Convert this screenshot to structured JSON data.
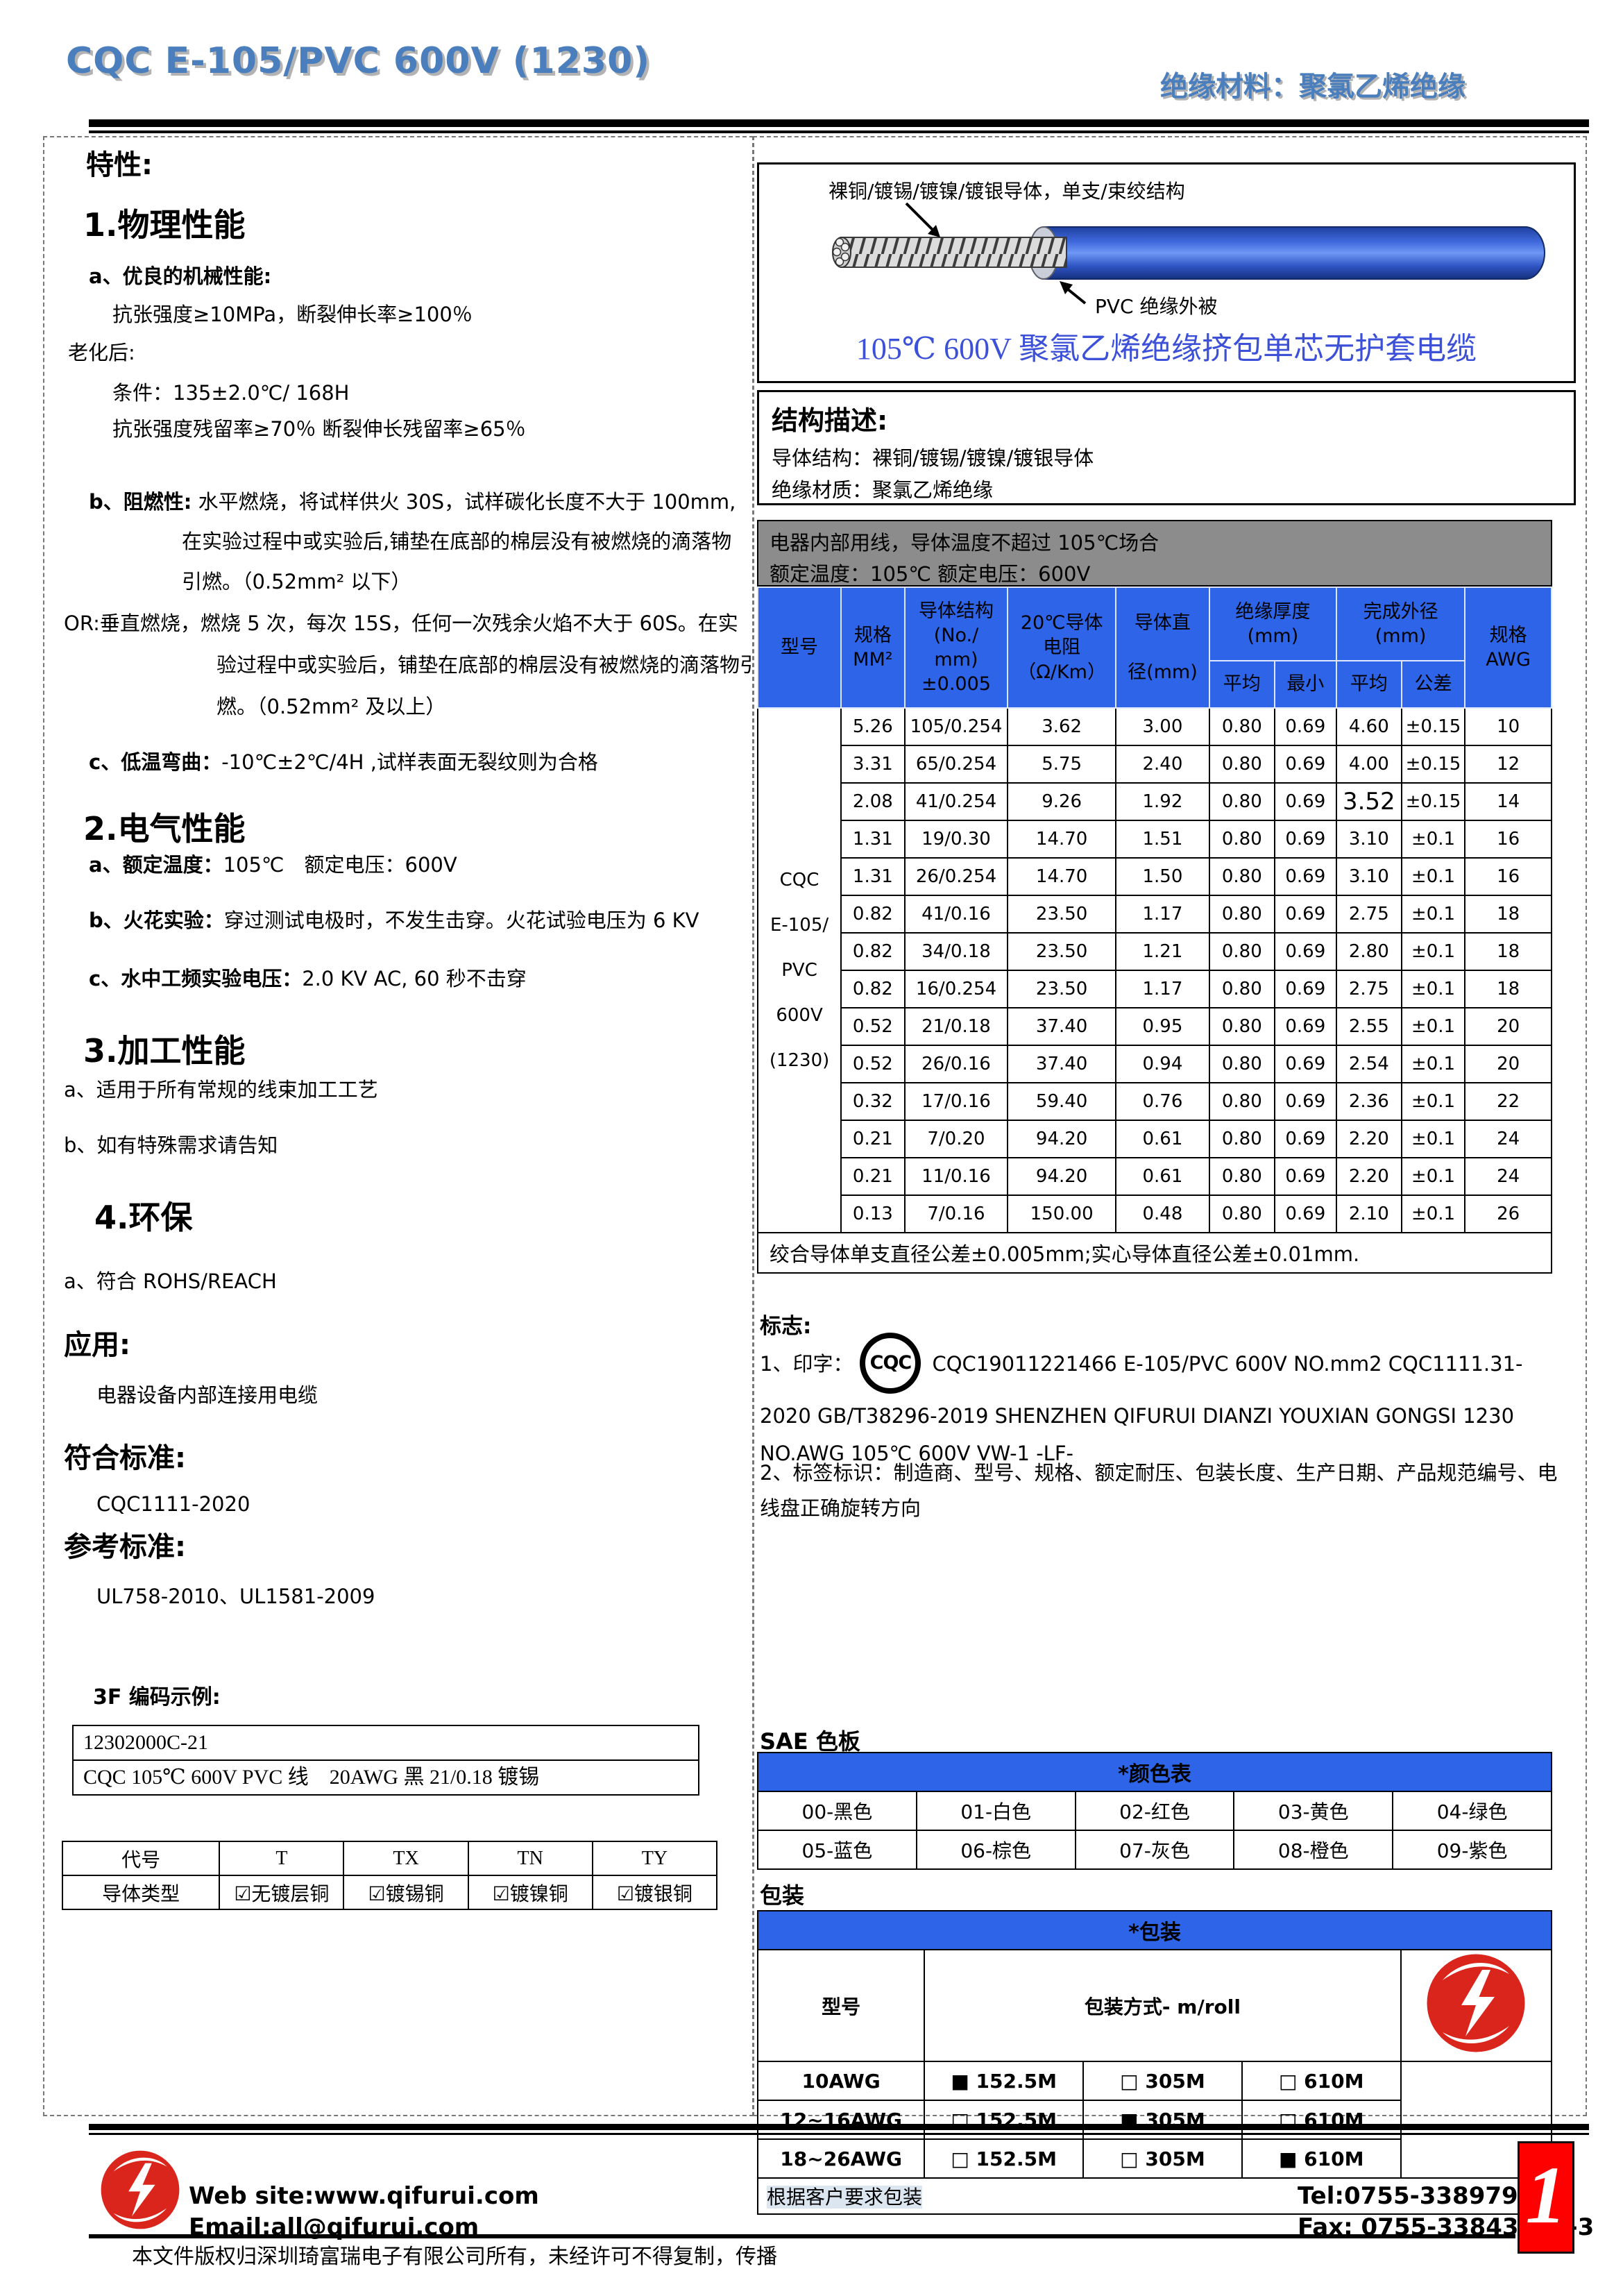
{
  "header": {
    "left_title": "CQC E-105/PVC 600V (1230)",
    "right_title": "绝缘材料：聚氯乙烯绝缘"
  },
  "left_column": {
    "title": "特性:",
    "paragraphs": [
      {
        "text": "1.物理性能"
      },
      {
        "text": "a、优良的机械性能:"
      },
      {
        "text": "抗张强度≥10MPa，断裂伸长率≥100％"
      },
      {
        "text": "老化后:"
      },
      {
        "text": "条件：135±2.0℃/ 168H"
      },
      {
        "text": "抗张强度残留率≥70％  断裂伸长残留率≥65％"
      },
      {
        "bold": "b、阻燃性:",
        "rest": " 水平燃烧，将试样供火 30S，试样碳化长度不大于 100mm,"
      },
      {
        "text": "在实验过程中或实验后,铺垫在底部的棉层没有被燃烧的滴落物"
      },
      {
        "text": "引燃。（0.52mm² 以下）"
      },
      {
        "text": "OR:垂直燃烧，燃烧 5 次，每次 15S，任何一次残余火焰不大于 60S。在实"
      },
      {
        "text": "验过程中或实验后，铺垫在底部的棉层没有被燃烧的滴落物引"
      },
      {
        "text": "燃。（0.52mm² 及以上）"
      },
      {
        "bold": "c、低温弯曲：",
        "rest": "-10℃±2℃/4H ,试样表面无裂纹则为合格"
      },
      {
        "text": "2.电气性能"
      },
      {
        "bold": "a、额定温度：",
        "rest": "105℃　额定电压：600V"
      },
      {
        "bold": "b、火花实验：",
        "rest": "穿过测试电极时，不发生击穿。火花试验电压为 6 KV"
      },
      {
        "bold": "c、水中工频实验电压：",
        "rest": "2.0 KV AC, 60 秒不击穿"
      },
      {
        "text": "3.加工性能"
      },
      {
        "text": "a、适用于所有常规的线束加工工艺"
      },
      {
        "text": "b、如有特殊需求请告知"
      },
      {
        "text": "4.环保"
      },
      {
        "text": "a、符合 ROHS/REACH"
      },
      {
        "text": "应用:"
      },
      {
        "text": "电器设备内部连接用电缆"
      },
      {
        "text": "符合标准:"
      },
      {
        "text": "CQC1111-2020"
      },
      {
        "text": "参考标准:"
      },
      {
        "text": "UL758-2010、UL1581-2009"
      },
      {
        "text": "3F 编码示例:"
      }
    ],
    "code_box": {
      "line1": "12302000C-21",
      "line2": "CQC 105℃  600V PVC 线　20AWG 黑 21/0.18 镀锡"
    },
    "conductor_table": {
      "header": [
        "代号",
        "T",
        "TX",
        "TN",
        "TY"
      ],
      "row": [
        "导体类型",
        "☑无镀层铜",
        "☑镀锡铜",
        "☑镀镍铜",
        "☑镀银铜"
      ]
    }
  },
  "right_column": {
    "cable_box": {
      "conductor_label": "裸铜/镀锡/镀镍/镀银导体，单支/束绞结构",
      "jacket_label": "PVC  绝缘外被",
      "caption": "105℃  600V 聚氯乙烯绝缘挤包单芯无护套电缆"
    },
    "structure_box": {
      "title": "结构描述:",
      "line1": "导体结构：裸铜/镀锡/镀镍/镀银导体",
      "line2": "绝缘材质：聚氯乙烯绝缘"
    },
    "band": {
      "line1": "电器内部用线，导体温度不超过 105℃场合",
      "line2": "额定温度：105℃  额定电压：600V"
    },
    "spec_table": {
      "h_model": "型号",
      "h_size": "规格\nMM²",
      "h_structure": "导体结构\n(No./\nmm)\n±0.005",
      "h_resistance": "20℃导体\n电阻\n（Ω/Km）",
      "h_diameter": "导体直\n\n径(mm)",
      "h_insulation": "绝缘厚度\n(mm)",
      "h_od": "完成外径\n(mm)",
      "h_avg1": "平均",
      "h_min": "最小",
      "h_avg2": "平均",
      "h_tol": "公差",
      "h_awg": "规格\nAWG",
      "model": "CQC\nE-105/\nPVC\n600V\n(1230)",
      "rows": [
        [
          "5.26",
          "105/0.254",
          "3.62",
          "3.00",
          "0.80",
          "0.69",
          "4.60",
          "±0.15",
          "10"
        ],
        [
          "3.31",
          "65/0.254",
          "5.75",
          "2.40",
          "0.80",
          "0.69",
          "4.00",
          "±0.15",
          "12"
        ],
        [
          "2.08",
          "41/0.254",
          "9.26",
          "1.92",
          "0.80",
          "0.69",
          "3.52",
          "±0.15",
          "14"
        ],
        [
          "1.31",
          "19/0.30",
          "14.70",
          "1.51",
          "0.80",
          "0.69",
          "3.10",
          "±0.1",
          "16"
        ],
        [
          "1.31",
          "26/0.254",
          "14.70",
          "1.50",
          "0.80",
          "0.69",
          "3.10",
          "±0.1",
          "16"
        ],
        [
          "0.82",
          "41/0.16",
          "23.50",
          "1.17",
          "0.80",
          "0.69",
          "2.75",
          "±0.1",
          "18"
        ],
        [
          "0.82",
          "34/0.18",
          "23.50",
          "1.21",
          "0.80",
          "0.69",
          "2.80",
          "±0.1",
          "18"
        ],
        [
          "0.82",
          "16/0.254",
          "23.50",
          "1.17",
          "0.80",
          "0.69",
          "2.75",
          "±0.1",
          "18"
        ],
        [
          "0.52",
          "21/0.18",
          "37.40",
          "0.95",
          "0.80",
          "0.69",
          "2.55",
          "±0.1",
          "20"
        ],
        [
          "0.52",
          "26/0.16",
          "37.40",
          "0.94",
          "0.80",
          "0.69",
          "2.54",
          "±0.1",
          "20"
        ],
        [
          "0.32",
          "17/0.16",
          "59.40",
          "0.76",
          "0.80",
          "0.69",
          "2.36",
          "±0.1",
          "22"
        ],
        [
          "0.21",
          "7/0.20",
          "94.20",
          "0.61",
          "0.80",
          "0.69",
          "2.20",
          "±0.1",
          "24"
        ],
        [
          "0.21",
          "11/0.16",
          "94.20",
          "0.61",
          "0.80",
          "0.69",
          "2.20",
          "±0.1",
          "24"
        ],
        [
          "0.13",
          "7/0.16",
          "150.00",
          "0.48",
          "0.80",
          "0.69",
          "2.10",
          "±0.1",
          "26"
        ]
      ],
      "note": "绞合导体单支直径公差±0.005mm;实心导体直径公差±0.01mm."
    },
    "marking": {
      "title": "标志:",
      "item1_prefix": "1、印字：",
      "cqc_logo_text": "CQC",
      "item1_text": "CQC19011221466  E-105/PVC  600V  NO.mm2  CQC1111.31-2020 GB/T38296-2019 SHENZHEN QIFURUI DIANZI YOUXIAN GONGSI      1230 NO.AWG 105℃  600V VW-1 -LF-",
      "item2_text": "2、标签标识：制造商、型号、规格、额定耐压、包装长度、生产日期、产品规范编号、电线盘正确旋转方向"
    },
    "sae": {
      "title": "SAE 色板",
      "header": "*颜色表",
      "row1": [
        "00-黑色",
        "01-白色",
        "02-红色",
        "03-黄色",
        "04-绿色"
      ],
      "row2": [
        "05-蓝色",
        "06-棕色",
        "07-灰色",
        "08-橙色",
        "09-紫色"
      ]
    },
    "packing": {
      "title": "包装",
      "header": "*包装",
      "col_model": "型号",
      "col_method": "包装方式- m/roll",
      "rows": [
        {
          "model": "10AWG",
          "opts": [
            "■  152.5M",
            "□  305M",
            "□  610M"
          ]
        },
        {
          "model": "12~16AWG",
          "opts": [
            "□  152.5M",
            "■  305M",
            "□  610M"
          ]
        },
        {
          "model": "18~26AWG",
          "opts": [
            "□  152.5M",
            "□  305M",
            "■  610M"
          ]
        }
      ],
      "note": "根据客户要求包装"
    }
  },
  "footer": {
    "website": "Web site:www.qifurui.com",
    "email": "Email:all@qifurui.com",
    "tel": "Tel:0755-33897988",
    "fax": "Fax: 0755-33843991-3",
    "copyright": "本文件版权归深圳琦富瑞电子有限公司所有，未经许可不得复制，传播",
    "page_number": "1"
  },
  "colors": {
    "table_header_blue": "#2d64e8",
    "band_gray": "#8c8c8c",
    "brand_red": "#da251d",
    "page_box_red": "#ff0000",
    "header_title_blue": "#4a7ebc",
    "cable_caption_blue": "#3c51d7",
    "cable_jacket_blue": "#2f5fd6",
    "note_highlight": "#dce6f1"
  }
}
